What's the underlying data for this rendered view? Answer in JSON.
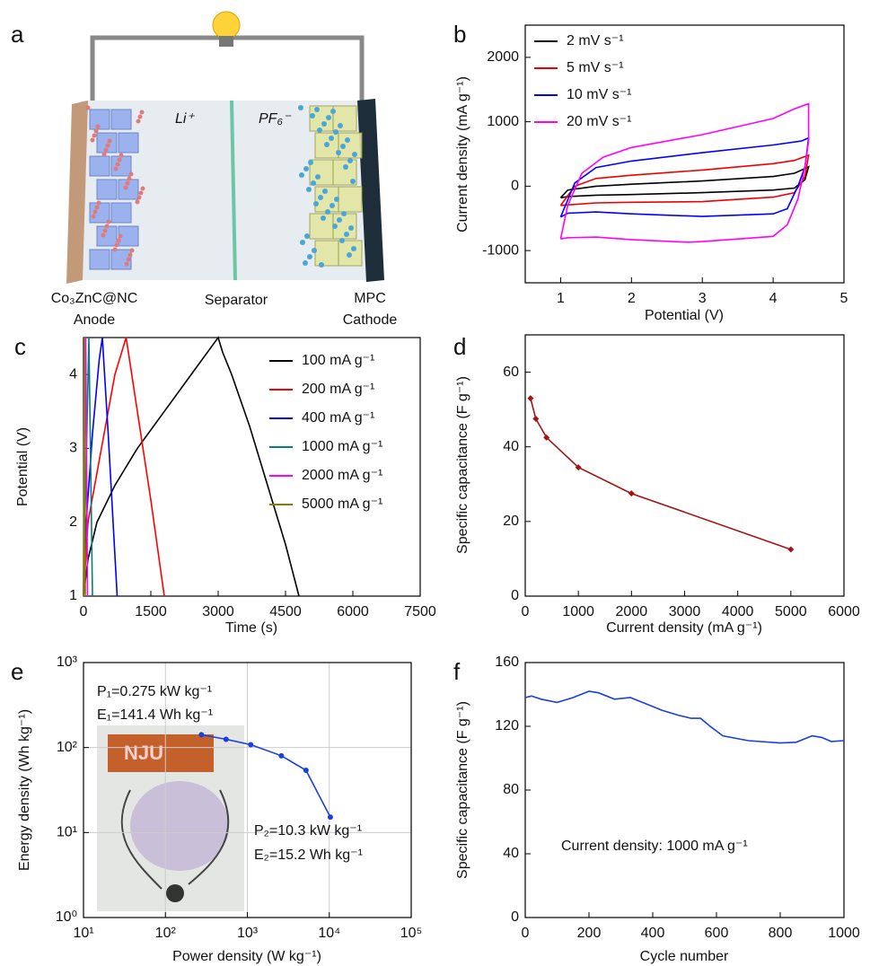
{
  "diagram": {
    "label": "a",
    "ion_left": "Li⁺",
    "ion_right": "PF₆⁻",
    "anode": [
      "Co₃ZnC@NC",
      "Anode"
    ],
    "separator": "Separator",
    "cathode": [
      "MPC",
      "Cathode"
    ]
  },
  "chart_data": [
    {
      "type": "line",
      "panel_label": "b",
      "xlabel": "Potential (V)",
      "ylabel": "Current density (mA g⁻¹)",
      "xlim": [
        0.5,
        5
      ],
      "ylim": [
        -1500,
        2500
      ],
      "xticks": [
        1,
        2,
        3,
        4,
        5
      ],
      "yticks": [
        -1000,
        0,
        1000,
        2000
      ],
      "legend": "upper left",
      "series": [
        {
          "name": "2 mV s⁻¹",
          "color": "#000000",
          "x": [
            1,
            1.1,
            1.5,
            2,
            3,
            4,
            4.3,
            4.5,
            4.45,
            4.3,
            4,
            3,
            2,
            1.5,
            1.1,
            1
          ],
          "values": [
            -180,
            -60,
            0,
            30,
            80,
            150,
            200,
            300,
            100,
            -30,
            -60,
            -100,
            -130,
            -140,
            -160,
            -180
          ]
        },
        {
          "name": "5 mV s⁻¹",
          "color": "#ee0000",
          "x": [
            1,
            1.2,
            1.5,
            2,
            3,
            4,
            4.3,
            4.5,
            4.45,
            4.3,
            4,
            3,
            2,
            1.5,
            1.1,
            1
          ],
          "values": [
            -300,
            0,
            120,
            170,
            250,
            350,
            400,
            480,
            150,
            -100,
            -170,
            -240,
            -250,
            -260,
            -290,
            -300
          ]
        },
        {
          "name": "10 mV s⁻¹",
          "color": "#0000ff",
          "x": [
            1,
            1.2,
            1.5,
            2,
            3,
            4,
            4.4,
            4.5,
            4.45,
            4.35,
            4.2,
            4,
            3,
            2,
            1.5,
            1.1,
            1
          ],
          "values": [
            -480,
            50,
            290,
            390,
            520,
            640,
            700,
            750,
            300,
            0,
            -350,
            -430,
            -470,
            -430,
            -400,
            -420,
            -480
          ]
        },
        {
          "name": "20 mV s⁻¹",
          "color": "#ff00ff",
          "x": [
            1,
            1.1,
            1.3,
            1.6,
            2,
            3,
            4,
            4.3,
            4.5,
            4.5,
            4.45,
            4.35,
            4.2,
            4,
            3,
            2.8,
            2,
            1.5,
            1.1,
            1
          ],
          "values": [
            -820,
            -300,
            200,
            450,
            600,
            800,
            1050,
            1200,
            1280,
            700,
            300,
            -200,
            -600,
            -780,
            -860,
            -870,
            -830,
            -790,
            -800,
            -820
          ]
        }
      ]
    },
    {
      "type": "line",
      "panel_label": "c",
      "xlabel": "Time (s)",
      "ylabel": "Potential (V)",
      "xlim": [
        0,
        7500
      ],
      "ylim": [
        1,
        4.5
      ],
      "xticks": [
        0,
        1500,
        3000,
        4500,
        6000,
        7500
      ],
      "yticks": [
        1,
        2,
        3,
        4
      ],
      "legend": "upper right",
      "series": [
        {
          "name": "100 mA g⁻¹",
          "color": "#000000",
          "x": [
            0,
            100,
            300,
            700,
            1200,
            1800,
            2400,
            3000,
            3100,
            3300,
            3700,
            4100,
            4500,
            4800
          ],
          "values": [
            1,
            1.5,
            2,
            2.5,
            3,
            3.5,
            4,
            4.5,
            4.3,
            4,
            3.3,
            2.5,
            1.7,
            1
          ]
        },
        {
          "name": "200 mA g⁻¹",
          "color": "#ff0000",
          "x": [
            0,
            100,
            400,
            700,
            950,
            1200,
            1500,
            1800
          ],
          "values": [
            1,
            2,
            3,
            4,
            4.5,
            3.5,
            2.3,
            1
          ]
        },
        {
          "name": "400 mA g⁻¹",
          "color": "#0000ff",
          "x": [
            0,
            60,
            200,
            350,
            420,
            550,
            750
          ],
          "values": [
            1,
            2,
            3.2,
            4.2,
            4.5,
            3.2,
            1
          ]
        },
        {
          "name": "1000 mA g⁻¹",
          "color": "#008080",
          "x": [
            0,
            50,
            120,
            200
          ],
          "values": [
            1,
            2.5,
            4.5,
            1
          ]
        },
        {
          "name": "2000 mA g⁻¹",
          "color": "#ff00ff",
          "x": [
            0,
            50,
            90
          ],
          "values": [
            1,
            4.5,
            1
          ]
        },
        {
          "name": "5000 mA g⁻¹",
          "color": "#808000",
          "x": [
            0,
            20,
            40
          ],
          "values": [
            1,
            4.5,
            1
          ]
        }
      ]
    },
    {
      "type": "line",
      "panel_label": "d",
      "xlabel": "Current density (mA g⁻¹)",
      "ylabel": "Specific capacitance (F g⁻¹)",
      "xlim": [
        0,
        6000
      ],
      "ylim": [
        0,
        70
      ],
      "xticks": [
        0,
        1000,
        2000,
        3000,
        4000,
        5000,
        6000
      ],
      "yticks": [
        0,
        20,
        40,
        60
      ],
      "markers": "diamond",
      "x": [
        100,
        200,
        400,
        1000,
        2000,
        5000
      ],
      "series": [
        {
          "color": "#a31515",
          "values": [
            53,
            47.5,
            42.5,
            34.5,
            27.5,
            12.5
          ]
        }
      ]
    },
    {
      "type": "line",
      "panel_label": "e",
      "xlabel": "Power density (W kg⁻¹)",
      "ylabel": "Energy density (Wh kg⁻¹)",
      "log_scale": true,
      "grid": true,
      "xlim": [
        10,
        100000
      ],
      "ylim": [
        1,
        1000
      ],
      "xticks": [
        {
          "value": 10,
          "label": "10¹"
        },
        {
          "value": 100,
          "label": "10²"
        },
        {
          "value": 1000,
          "label": "10³"
        },
        {
          "value": 10000,
          "label": "10⁴"
        },
        {
          "value": 100000,
          "label": "10⁵"
        }
      ],
      "yticks": [
        {
          "value": 1,
          "label": "10⁰"
        },
        {
          "value": 10,
          "label": "10¹"
        },
        {
          "value": 100,
          "label": "10²"
        },
        {
          "value": 1000,
          "label": "10³"
        }
      ],
      "markers": "circle",
      "x": [
        275,
        550,
        1100,
        2600,
        5200,
        10300
      ],
      "series": [
        {
          "color": "#1a3fe0",
          "values": [
            141.4,
            125,
            108,
            80,
            54,
            15.2
          ]
        }
      ],
      "annotations": [
        "P₁=0.275 kW kg⁻¹",
        "E₁=141.4 Wh kg⁻¹",
        "P₂=10.3 kW kg⁻¹",
        "E₂=15.2 Wh kg⁻¹"
      ],
      "inset_text": "NJU"
    },
    {
      "type": "line",
      "panel_label": "f",
      "xlabel": "Cycle number",
      "ylabel": "Specific capacitance (F g⁻¹)",
      "xlim": [
        0,
        1000
      ],
      "ylim": [
        0,
        160
      ],
      "xticks": [
        0,
        200,
        400,
        600,
        800,
        1000
      ],
      "yticks": [
        0,
        40,
        80,
        120,
        160
      ],
      "x": [
        0,
        20,
        50,
        100,
        150,
        200,
        230,
        280,
        330,
        380,
        430,
        480,
        520,
        550,
        580,
        620,
        700,
        800,
        850,
        900,
        930,
        960,
        1000
      ],
      "series": [
        {
          "color": "#1a3fe0",
          "values": [
            138,
            139,
            137,
            135,
            138,
            142,
            141,
            137,
            138,
            134,
            130,
            127,
            125,
            125,
            120,
            114,
            111,
            109.5,
            110,
            114,
            113,
            110.5,
            111
          ]
        }
      ],
      "annotations": [
        "Current density: 1000 mA g⁻¹"
      ]
    }
  ]
}
